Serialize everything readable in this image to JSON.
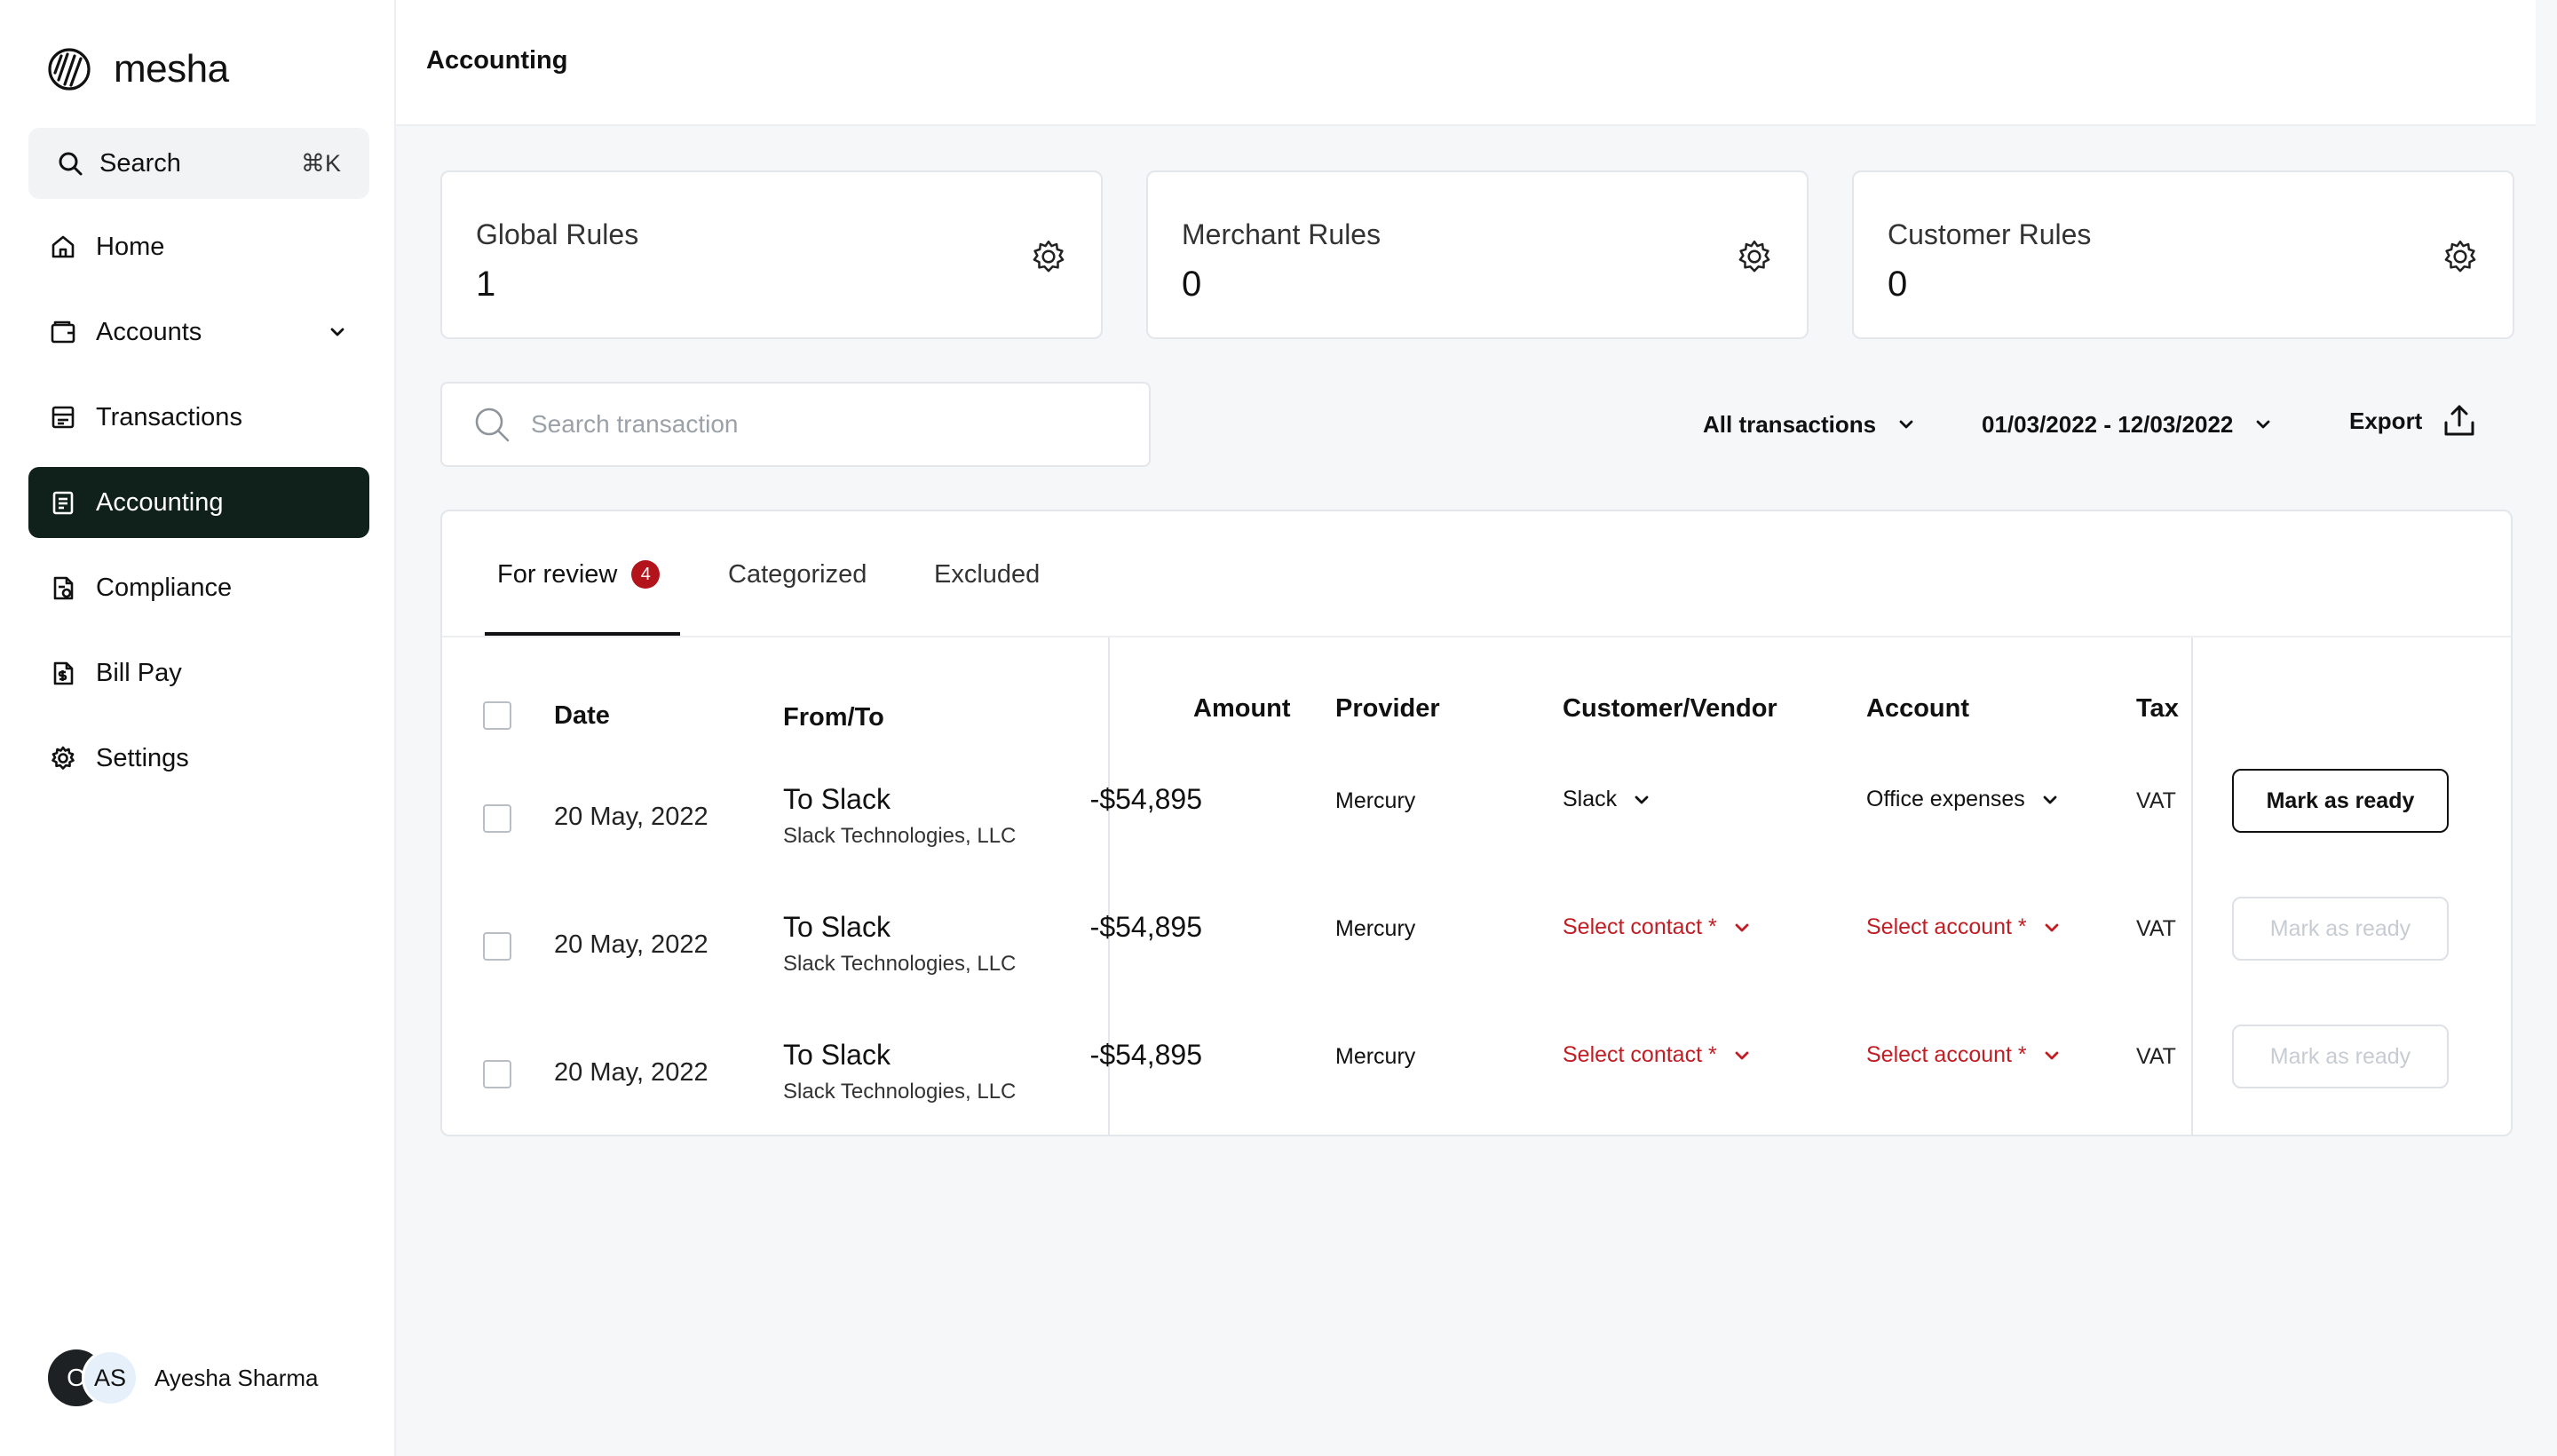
{
  "app": {
    "brand": "mesha",
    "search_label": "Search",
    "search_shortcut": "⌘K"
  },
  "nav": [
    {
      "label": "Home",
      "icon": "home-icon"
    },
    {
      "label": "Accounts",
      "icon": "wallet-icon",
      "has_chevron": true
    },
    {
      "label": "Transactions",
      "icon": "ledger-icon"
    },
    {
      "label": "Accounting",
      "icon": "document-icon",
      "active": true
    },
    {
      "label": "Compliance",
      "icon": "compliance-icon"
    },
    {
      "label": "Bill Pay",
      "icon": "dollar-doc-icon"
    },
    {
      "label": "Settings",
      "icon": "gear-icon"
    }
  ],
  "user": {
    "initial_1": "O",
    "initial_2": "AS",
    "name": "Ayesha Sharma"
  },
  "header": {
    "title": "Accounting"
  },
  "rules": [
    {
      "title": "Global Rules",
      "count": "1"
    },
    {
      "title": "Merchant Rules",
      "count": "0"
    },
    {
      "title": "Customer Rules",
      "count": "0"
    }
  ],
  "toolbar": {
    "search_placeholder": "Search transaction",
    "filter_label": "All transactions",
    "date_range": "01/03/2022 - 12/03/2022",
    "export_label": "Export"
  },
  "tabs": [
    {
      "label": "For review",
      "badge": "4",
      "active": true
    },
    {
      "label": "Categorized"
    },
    {
      "label": "Excluded"
    }
  ],
  "table": {
    "headers": {
      "date": "Date",
      "from_to": "From/To",
      "amount": "Amount",
      "provider": "Provider",
      "customer_vendor": "Customer/Vendor",
      "account": "Account",
      "tax": "Tax"
    },
    "rows": [
      {
        "date": "20 May, 2022",
        "to": "To Slack",
        "company": "Slack Technologies, LLC",
        "amount": "-$54,895",
        "provider": "Mercury",
        "contact": "Slack",
        "contact_missing": false,
        "account": "Office expenses",
        "account_missing": false,
        "tax": "VAT",
        "action": "Mark as ready",
        "action_enabled": true
      },
      {
        "date": "20 May, 2022",
        "to": "To Slack",
        "company": "Slack Technologies, LLC",
        "amount": "-$54,895",
        "provider": "Mercury",
        "contact": "Select contact *",
        "contact_missing": true,
        "account": "Select account *",
        "account_missing": true,
        "tax": "VAT",
        "action": "Mark as ready",
        "action_enabled": false
      },
      {
        "date": "20 May, 2022",
        "to": "To Slack",
        "company": "Slack Technologies, LLC",
        "amount": "-$54,895",
        "provider": "Mercury",
        "contact": "Select contact *",
        "contact_missing": true,
        "account": "Select account *",
        "account_missing": true,
        "tax": "VAT",
        "action": "Mark as ready",
        "action_enabled": false
      }
    ]
  },
  "colors": {
    "accent_dark": "#10201b",
    "error_red": "#c01e24",
    "badge_red": "#b3141c",
    "border": "#e3e6ea",
    "background": "#f6f7f9"
  }
}
